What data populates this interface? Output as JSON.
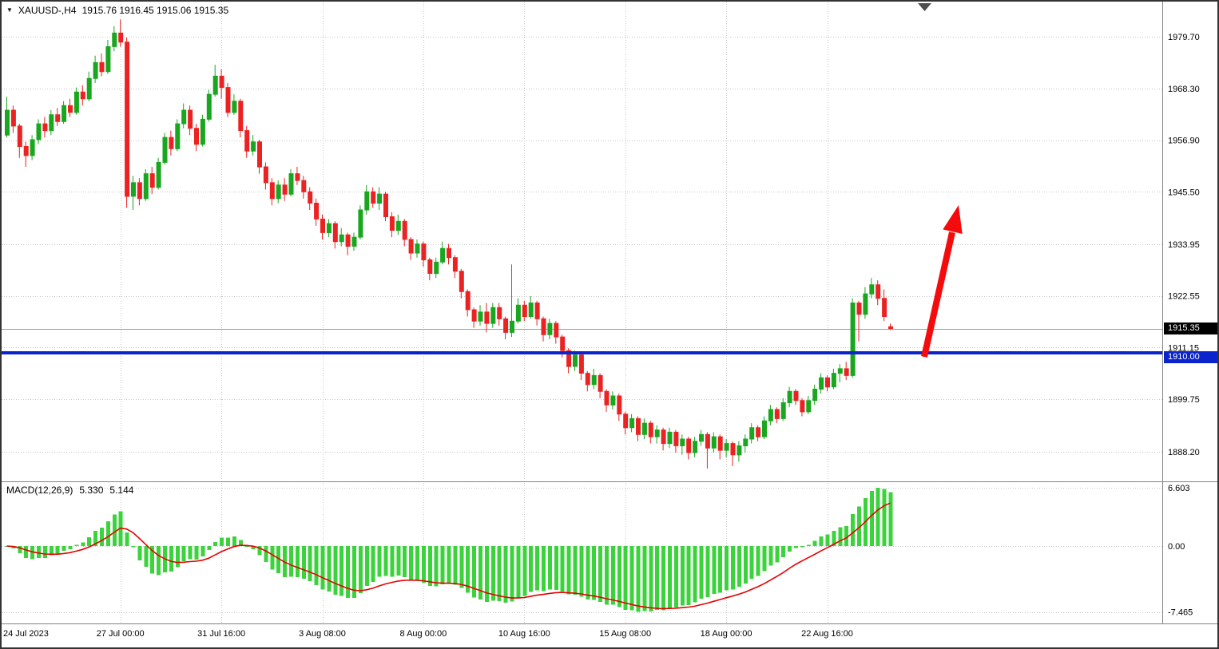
{
  "header": {
    "dropdown_icon": "▼",
    "symbol_period": "XAUUSD-,H4",
    "ohlc": "1915.76 1916.45 1915.06 1915.35"
  },
  "price_axis": {
    "current_price_badge": "1915.35",
    "line_badge": "1910.00"
  },
  "macd_panel": {
    "label": "MACD(12,26,9)",
    "value_main": "5.330",
    "value_signal": "5.144",
    "axis_labels": [
      "6.603",
      "0.00",
      "-7.465"
    ]
  },
  "colors": {
    "bull": "#18a71e",
    "bear": "#ec2222",
    "hist": "#3bd33b",
    "signal": "#e60000",
    "hline": "#0a23cc",
    "arrow": "#f40b0b",
    "badge_dark": "#000000",
    "grid": "#c8c8c8"
  },
  "chart_data": {
    "type": "candlestick",
    "title": "XAUUSD-,H4",
    "symbol": "XAUUSD",
    "timeframe": "H4",
    "ohlc_current": {
      "open": 1915.76,
      "high": 1916.45,
      "low": 1915.06,
      "close": 1915.35
    },
    "current_price": 1915.35,
    "horizontal_line": {
      "price": 1910.0,
      "style": "thick-solid"
    },
    "annotation_arrow": {
      "shape": "up-right-arrow",
      "meaning": "projected bullish move"
    },
    "ylim": [
      1882.3,
      1987.4
    ],
    "grid": "dotted",
    "y_axis_ticks": [
      1979.7,
      1968.3,
      1956.9,
      1945.5,
      1933.95,
      1922.55,
      1911.15,
      1899.75,
      1888.2
    ],
    "x_axis_ticks": [
      {
        "label": "24 Jul 2023",
        "i": 0
      },
      {
        "label": "27 Jul 00:00",
        "i": 18
      },
      {
        "label": "31 Jul 16:00",
        "i": 34
      },
      {
        "label": "3 Aug 08:00",
        "i": 50
      },
      {
        "label": "8 Aug 00:00",
        "i": 66
      },
      {
        "label": "10 Aug 16:00",
        "i": 82
      },
      {
        "label": "15 Aug 08:00",
        "i": 98
      },
      {
        "label": "18 Aug 00:00",
        "i": 114
      },
      {
        "label": "22 Aug 16:00",
        "i": 130
      }
    ],
    "indicator": {
      "type": "MACD",
      "params": [
        12,
        26,
        9
      ],
      "display": "histogram+signal",
      "last_main": 5.33,
      "last_signal": 5.144,
      "y_ticks": [
        6.603,
        0,
        -7.465
      ]
    },
    "candles": [
      [
        1958,
        1966.5,
        1957.5,
        1963.5
      ],
      [
        1963.5,
        1964.5,
        1958.5,
        1960
      ],
      [
        1960,
        1960.5,
        1953,
        1955.5
      ],
      [
        1955.5,
        1956.5,
        1951,
        1953.5
      ],
      [
        1953.5,
        1958,
        1952.5,
        1957
      ],
      [
        1957,
        1961.5,
        1956,
        1960.5
      ],
      [
        1960.5,
        1962,
        1957.5,
        1959
      ],
      [
        1959,
        1963.5,
        1958,
        1962.5
      ],
      [
        1962.5,
        1964,
        1960,
        1961
      ],
      [
        1961,
        1965.5,
        1960.5,
        1964.5
      ],
      [
        1964.5,
        1966,
        1962,
        1963
      ],
      [
        1963,
        1968.5,
        1962.5,
        1967.5
      ],
      [
        1967.5,
        1969,
        1964.5,
        1966
      ],
      [
        1966,
        1972,
        1965.5,
        1970.5
      ],
      [
        1970.5,
        1975.5,
        1969.5,
        1974
      ],
      [
        1974,
        1976,
        1971,
        1972
      ],
      [
        1972,
        1979,
        1971.5,
        1977.5
      ],
      [
        1977.5,
        1982,
        1976.5,
        1980.5
      ],
      [
        1980.5,
        1983.5,
        1977.5,
        1978.5
      ],
      [
        1978.5,
        1979.5,
        1942,
        1944.5
      ],
      [
        1944.5,
        1949,
        1941.5,
        1947.5
      ],
      [
        1947.5,
        1948.5,
        1942.5,
        1944
      ],
      [
        1944,
        1950.5,
        1943.5,
        1949.5
      ],
      [
        1949.5,
        1951,
        1945,
        1946.5
      ],
      [
        1946.5,
        1953,
        1946,
        1952
      ],
      [
        1952,
        1958.5,
        1951.5,
        1957.5
      ],
      [
        1957.5,
        1959,
        1953.5,
        1955
      ],
      [
        1955,
        1961.5,
        1954.5,
        1960.5
      ],
      [
        1960.5,
        1965,
        1959.5,
        1963.5
      ],
      [
        1963.5,
        1964.5,
        1958,
        1959.5
      ],
      [
        1959.5,
        1960.5,
        1954.5,
        1956
      ],
      [
        1956,
        1962.5,
        1955.5,
        1961.5
      ],
      [
        1961.5,
        1968,
        1961,
        1967
      ],
      [
        1967,
        1973.5,
        1966.5,
        1971
      ],
      [
        1971,
        1972.5,
        1966,
        1968.5
      ],
      [
        1968.5,
        1969.5,
        1962,
        1963
      ],
      [
        1963,
        1967,
        1962.5,
        1965.5
      ],
      [
        1965.5,
        1966,
        1957.5,
        1959
      ],
      [
        1959,
        1960,
        1953,
        1954.5
      ],
      [
        1954.5,
        1958,
        1953.5,
        1956.5
      ],
      [
        1956.5,
        1957,
        1949.5,
        1951
      ],
      [
        1951,
        1952,
        1946,
        1947.5
      ],
      [
        1947.5,
        1948.5,
        1942.5,
        1944
      ],
      [
        1944,
        1948,
        1943,
        1947
      ],
      [
        1947,
        1948.5,
        1943.5,
        1945
      ],
      [
        1945,
        1950.5,
        1944.5,
        1949.5
      ],
      [
        1949.5,
        1951,
        1947,
        1948
      ],
      [
        1948,
        1949,
        1944,
        1945.5
      ],
      [
        1945.5,
        1946.5,
        1941.5,
        1943
      ],
      [
        1943,
        1944,
        1938,
        1939.5
      ],
      [
        1939.5,
        1940.5,
        1935,
        1936.5
      ],
      [
        1936.5,
        1939.5,
        1935.5,
        1938.5
      ],
      [
        1938.5,
        1939,
        1933,
        1934.5
      ],
      [
        1934.5,
        1937.5,
        1933.5,
        1936
      ],
      [
        1936,
        1936.5,
        1931.5,
        1933.5
      ],
      [
        1933.5,
        1936.5,
        1932.5,
        1935.5
      ],
      [
        1935.5,
        1942.5,
        1935,
        1941.5
      ],
      [
        1941.5,
        1947,
        1940.5,
        1945.5
      ],
      [
        1945.5,
        1946.5,
        1942,
        1943
      ],
      [
        1943,
        1946.5,
        1941.5,
        1945
      ],
      [
        1945,
        1945.5,
        1939,
        1940
      ],
      [
        1940,
        1941,
        1935.5,
        1937
      ],
      [
        1937,
        1940.5,
        1936,
        1939
      ],
      [
        1939,
        1939.5,
        1933.5,
        1935
      ],
      [
        1935,
        1935.5,
        1930.5,
        1932
      ],
      [
        1932,
        1935,
        1931,
        1934
      ],
      [
        1934,
        1934.5,
        1929,
        1930.5
      ],
      [
        1930.5,
        1931,
        1926,
        1927.5
      ],
      [
        1927.5,
        1931,
        1926.5,
        1930
      ],
      [
        1930,
        1934.5,
        1929.5,
        1933
      ],
      [
        1933,
        1934,
        1929.5,
        1931
      ],
      [
        1931,
        1931.5,
        1926.5,
        1928
      ],
      [
        1928,
        1928.5,
        1922,
        1923.5
      ],
      [
        1923.5,
        1924,
        1918,
        1919.5
      ],
      [
        1919.5,
        1920,
        1915.5,
        1917
      ],
      [
        1917,
        1920.5,
        1916,
        1919
      ],
      [
        1919,
        1921,
        1914.5,
        1916.5
      ],
      [
        1916.5,
        1921,
        1915.5,
        1920
      ],
      [
        1920,
        1921,
        1916,
        1917.5
      ],
      [
        1917.5,
        1918,
        1913,
        1914.5
      ],
      [
        1914.5,
        1929.5,
        1913.5,
        1917
      ],
      [
        1917,
        1922,
        1916.5,
        1920.5
      ],
      [
        1920.5,
        1921.5,
        1917,
        1918
      ],
      [
        1918,
        1922.5,
        1917.5,
        1921
      ],
      [
        1921,
        1921.5,
        1916,
        1917.5
      ],
      [
        1917.5,
        1918,
        1912.5,
        1914
      ],
      [
        1914,
        1917.5,
        1913,
        1916.5
      ],
      [
        1916.5,
        1917,
        1912,
        1913.5
      ],
      [
        1913.5,
        1914,
        1909,
        1910.5
      ],
      [
        1910.5,
        1911,
        1905.5,
        1907
      ],
      [
        1907,
        1910.5,
        1906,
        1909.5
      ],
      [
        1909.5,
        1910,
        1904,
        1905.5
      ],
      [
        1905.5,
        1906,
        1901.5,
        1903
      ],
      [
        1903,
        1906.5,
        1902,
        1905
      ],
      [
        1905,
        1905.5,
        1900,
        1901.5
      ],
      [
        1901.5,
        1902,
        1897,
        1898.5
      ],
      [
        1898.5,
        1901.5,
        1897.5,
        1900.5
      ],
      [
        1900.5,
        1901,
        1895,
        1896.5
      ],
      [
        1896.5,
        1897,
        1892,
        1893.5
      ],
      [
        1893.5,
        1896.5,
        1892.5,
        1895.5
      ],
      [
        1895.5,
        1896,
        1890.5,
        1892
      ],
      [
        1892,
        1895.5,
        1891,
        1894.5
      ],
      [
        1894.5,
        1895,
        1890,
        1891.5
      ],
      [
        1891.5,
        1894,
        1890,
        1893
      ],
      [
        1893,
        1893.5,
        1888.5,
        1890
      ],
      [
        1890,
        1893.5,
        1889,
        1892.5
      ],
      [
        1892.5,
        1893,
        1888,
        1889.5
      ],
      [
        1889.5,
        1892,
        1887.5,
        1891
      ],
      [
        1891,
        1891.5,
        1886.5,
        1888
      ],
      [
        1888,
        1891.5,
        1887,
        1890.5
      ],
      [
        1890.5,
        1893,
        1889.5,
        1892
      ],
      [
        1892,
        1892.5,
        1884.5,
        1889
      ],
      [
        1889,
        1892.5,
        1888,
        1891.5
      ],
      [
        1891.5,
        1892,
        1886.5,
        1888.5
      ],
      [
        1888.5,
        1891,
        1887,
        1890
      ],
      [
        1890,
        1890.5,
        1885,
        1887.5
      ],
      [
        1887.5,
        1890.5,
        1886,
        1889.5
      ],
      [
        1889.5,
        1892,
        1888,
        1891
      ],
      [
        1891,
        1894.5,
        1890,
        1893.5
      ],
      [
        1893.5,
        1894,
        1890.5,
        1891.5
      ],
      [
        1891.5,
        1896,
        1891,
        1895
      ],
      [
        1895,
        1898.5,
        1894,
        1897.5
      ],
      [
        1897.5,
        1898,
        1894.5,
        1895.5
      ],
      [
        1895.5,
        1900,
        1895,
        1899
      ],
      [
        1899,
        1902.5,
        1898,
        1901.5
      ],
      [
        1901.5,
        1902,
        1898.5,
        1899.5
      ],
      [
        1899.5,
        1900,
        1896,
        1897
      ],
      [
        1897,
        1900.5,
        1896.5,
        1899.5
      ],
      [
        1899.5,
        1903,
        1898.5,
        1902
      ],
      [
        1902,
        1905.5,
        1901,
        1904.5
      ],
      [
        1904.5,
        1905,
        1901.5,
        1902.5
      ],
      [
        1902.5,
        1906.5,
        1902,
        1905.5
      ],
      [
        1905.5,
        1907.5,
        1903.5,
        1906.5
      ],
      [
        1906.5,
        1908,
        1904,
        1905
      ],
      [
        1905,
        1922,
        1904.5,
        1921
      ],
      [
        1921,
        1921.5,
        1912.5,
        1918.5
      ],
      [
        1918.5,
        1924.5,
        1917.5,
        1923
      ],
      [
        1923,
        1926.5,
        1922,
        1925
      ],
      [
        1925,
        1926,
        1920.5,
        1922
      ],
      [
        1922,
        1924,
        1917,
        1918
      ],
      [
        1915.76,
        1916.45,
        1915.06,
        1915.35
      ]
    ]
  }
}
